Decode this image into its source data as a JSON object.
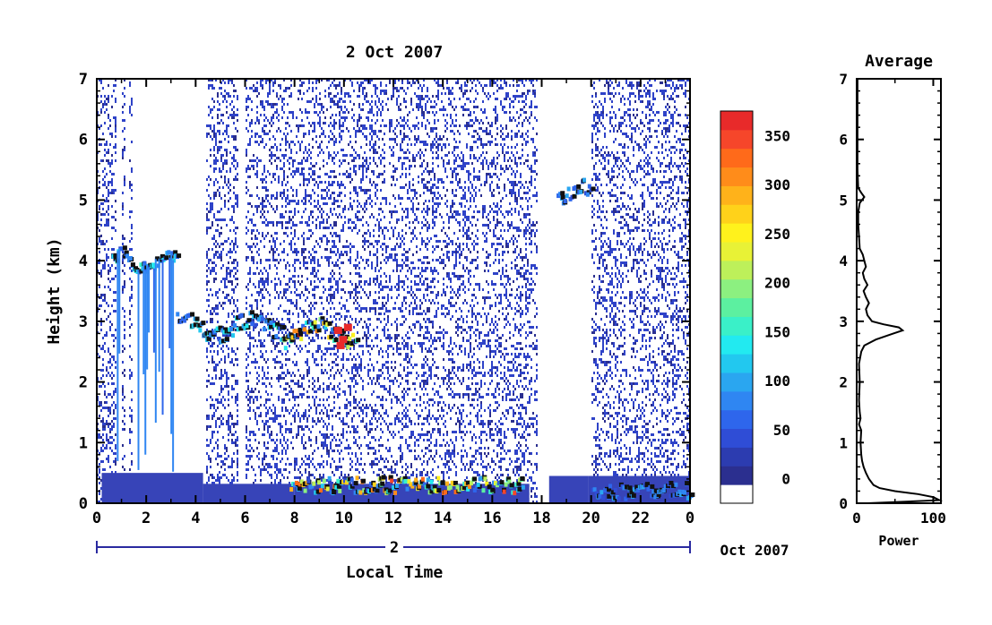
{
  "chart_data": [
    {
      "type": "heatmap",
      "title": "2 Oct 2007",
      "xlabel": "Local Time",
      "ylabel": "Height (km)",
      "xlim": [
        0,
        24
      ],
      "ylim": [
        0,
        7
      ],
      "x_ticks": [
        "0",
        "2",
        "4",
        "6",
        "8",
        "10",
        "12",
        "14",
        "16",
        "18",
        "20",
        "22",
        "0"
      ],
      "y_ticks": [
        "0",
        "1",
        "2",
        "3",
        "4",
        "5",
        "6",
        "7"
      ],
      "date_axis": {
        "day_label": "2",
        "month_label": "Oct 2007"
      },
      "colorbar": {
        "ticks": [
          "0",
          "50",
          "100",
          "150",
          "200",
          "250",
          "300",
          "350"
        ],
        "range": [
          -25,
          375
        ],
        "colors": [
          "#ffffff",
          "#2b2f8f",
          "#2c3cb0",
          "#2f4dd6",
          "#2e66ec",
          "#2f86f2",
          "#2aa6f0",
          "#22c8ef",
          "#22eaf0",
          "#3af0c8",
          "#5cf0a0",
          "#8cf080",
          "#bdf05a",
          "#e8f236",
          "#fff21c",
          "#ffd21a",
          "#ffb21a",
          "#ff8c1a",
          "#ff6a1a",
          "#f6462a",
          "#e82a2a"
        ]
      },
      "cloud_layers": [
        {
          "t_start": 0.6,
          "t_end": 3.2,
          "height_km": 4.0,
          "max_value": 150
        },
        {
          "t_start": 3.2,
          "t_end": 7.5,
          "height_km": 2.9,
          "max_value": 150
        },
        {
          "t_start": 7.5,
          "t_end": 10.5,
          "height_km": 2.8,
          "max_value": 375
        },
        {
          "t_start": 7.8,
          "t_end": 17.2,
          "height_km": 0.3,
          "max_value": 350
        },
        {
          "t_start": 18.6,
          "t_end": 20.0,
          "height_km": 5.1,
          "max_value": 100
        },
        {
          "t_start": 20.0,
          "t_end": 24.0,
          "height_km": 0.2,
          "max_value": 100
        }
      ]
    },
    {
      "type": "line",
      "title": "Average",
      "xlabel": "Power",
      "ylabel": "",
      "xlim": [
        0,
        110
      ],
      "ylim": [
        0,
        7
      ],
      "x_ticks": [
        "0",
        "100"
      ],
      "y_ticks": [
        "0",
        "1",
        "2",
        "3",
        "4",
        "5",
        "6",
        "7"
      ],
      "profile": [
        [
          0.0,
          15
        ],
        [
          0.05,
          108
        ],
        [
          0.1,
          100
        ],
        [
          0.15,
          80
        ],
        [
          0.2,
          50
        ],
        [
          0.25,
          30
        ],
        [
          0.3,
          22
        ],
        [
          0.4,
          16
        ],
        [
          0.5,
          12
        ],
        [
          0.6,
          9
        ],
        [
          0.7,
          7
        ],
        [
          0.8,
          6
        ],
        [
          1.0,
          5
        ],
        [
          1.2,
          6
        ],
        [
          1.3,
          3
        ],
        [
          1.4,
          5
        ],
        [
          1.5,
          4
        ],
        [
          1.7,
          3
        ],
        [
          2.0,
          4
        ],
        [
          2.3,
          3
        ],
        [
          2.5,
          6
        ],
        [
          2.6,
          10
        ],
        [
          2.7,
          25
        ],
        [
          2.8,
          48
        ],
        [
          2.85,
          60
        ],
        [
          2.9,
          55
        ],
        [
          2.95,
          35
        ],
        [
          3.0,
          20
        ],
        [
          3.1,
          14
        ],
        [
          3.2,
          12
        ],
        [
          3.3,
          16
        ],
        [
          3.4,
          12
        ],
        [
          3.5,
          9
        ],
        [
          3.6,
          14
        ],
        [
          3.7,
          10
        ],
        [
          3.8,
          8
        ],
        [
          3.9,
          12
        ],
        [
          4.0,
          10
        ],
        [
          4.1,
          8
        ],
        [
          4.2,
          4
        ],
        [
          4.4,
          3
        ],
        [
          4.6,
          2
        ],
        [
          4.8,
          2
        ],
        [
          4.95,
          4
        ],
        [
          5.05,
          10
        ],
        [
          5.12,
          6
        ],
        [
          5.2,
          2
        ],
        [
          5.5,
          1
        ],
        [
          6.0,
          1
        ],
        [
          6.5,
          1
        ],
        [
          7.0,
          1
        ]
      ]
    }
  ]
}
